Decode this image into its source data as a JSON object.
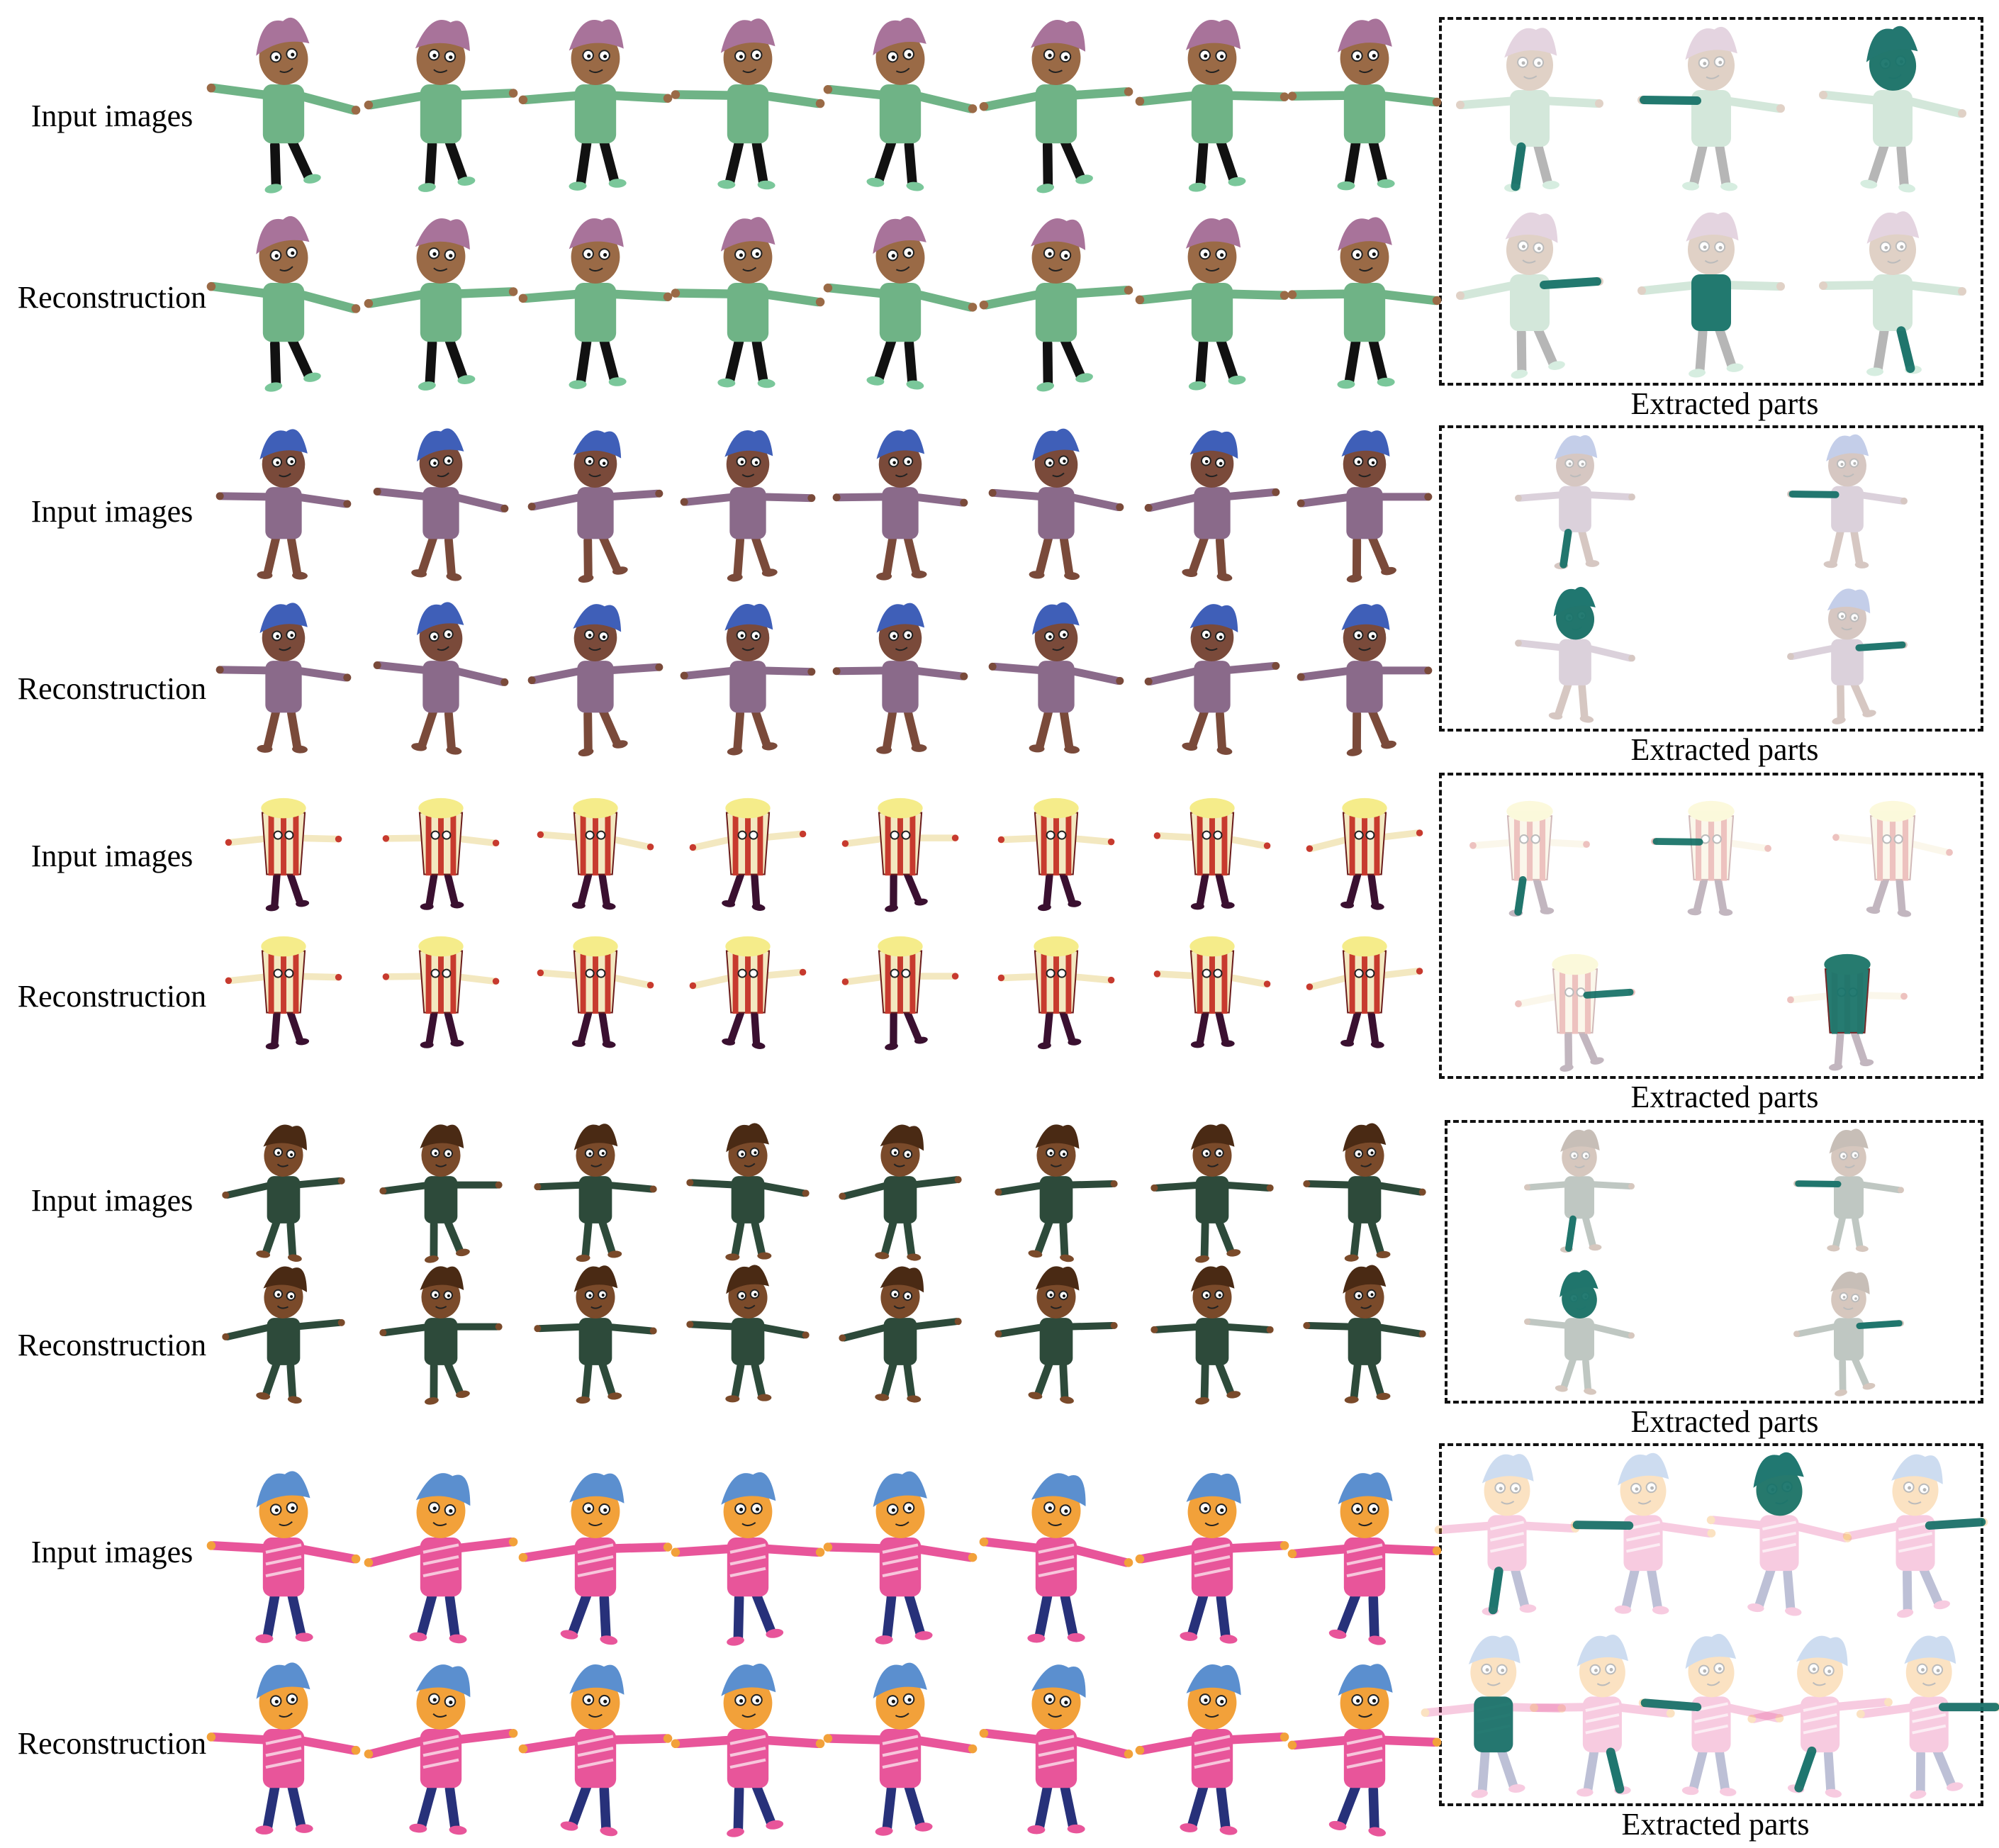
{
  "figure": {
    "row_labels": {
      "input": "Input images",
      "reconstruction": "Reconstruction"
    },
    "parts_caption": "Extracted parts",
    "highlight_color": "#0f6e64",
    "characters": [
      {
        "name": "boy-purple-hair",
        "skin": "#9a6a46",
        "hair": "#a8739a",
        "shirt": "#6fb386",
        "pants": "#111111",
        "shoes": "#7ac79a",
        "parts_count": 6
      },
      {
        "name": "blue-spiky-monster",
        "skin": "#7a4a3a",
        "hair": "#3f5fb8",
        "shirt": "#8a6a8a",
        "pants": "#7a4a3a",
        "shoes": "#7a4a3a",
        "parts_count": 4
      },
      {
        "name": "popcorn",
        "skin": "#c73a2e",
        "hair": "#f5ec8a",
        "shirt": "#f3e8c0",
        "pants": "#3a1030",
        "shoes": "#3a1030",
        "parts_count": 5
      },
      {
        "name": "boy-green-sweater",
        "skin": "#7a4a2a",
        "hair": "#4a2a14",
        "shirt": "#2d4a3a",
        "pants": "#2d4a3a",
        "shoes": "#7a4a2a",
        "parts_count": 4
      },
      {
        "name": "girl-pink-shirt",
        "skin": "#f2a13a",
        "hair": "#5b8fcf",
        "shirt": "#e8559a",
        "pants": "#27317a",
        "shoes": "#e8559a",
        "parts_count": 9
      }
    ]
  }
}
